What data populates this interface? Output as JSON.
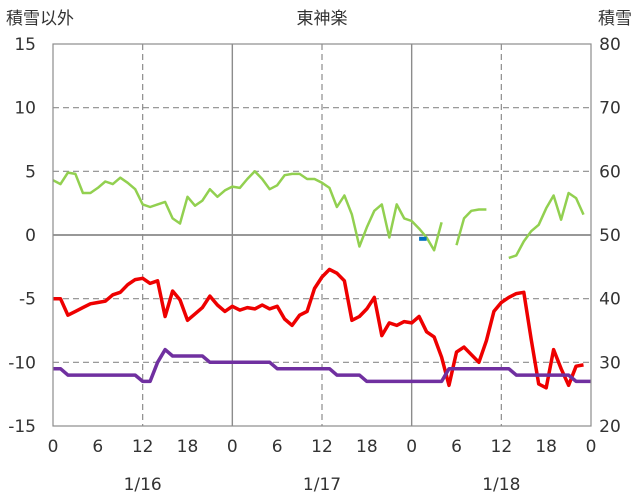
{
  "chart_data": {
    "type": "line",
    "title": "東神楽",
    "left_axis_label": "積雪以外",
    "right_axis_label": "積雪",
    "left_ylim": [
      -15,
      15
    ],
    "right_ylim": [
      20,
      80
    ],
    "left_yticks": [
      "15",
      "10",
      "5",
      "0",
      "-5",
      "-10",
      "-15"
    ],
    "right_yticks": [
      "80",
      "70",
      "60",
      "50",
      "40",
      "30",
      "20"
    ],
    "xlim": [
      0,
      72
    ],
    "x_ticks": [
      {
        "x": 0,
        "label": "0"
      },
      {
        "x": 6,
        "label": "6"
      },
      {
        "x": 12,
        "label": "12"
      },
      {
        "x": 18,
        "label": "18"
      },
      {
        "x": 24,
        "label": "0"
      },
      {
        "x": 30,
        "label": "6"
      },
      {
        "x": 36,
        "label": "12"
      },
      {
        "x": 42,
        "label": "18"
      },
      {
        "x": 48,
        "label": "0"
      },
      {
        "x": 54,
        "label": "6"
      },
      {
        "x": 60,
        "label": "12"
      },
      {
        "x": 66,
        "label": "18"
      },
      {
        "x": 72,
        "label": "0"
      }
    ],
    "date_labels": [
      {
        "x": 12,
        "label": "1/16"
      },
      {
        "x": 36,
        "label": "1/17"
      },
      {
        "x": 60,
        "label": "1/18"
      }
    ],
    "series": [
      {
        "color": "#92d050",
        "axis": "left",
        "width": 2.5,
        "segments": [
          [
            [
              0,
              4.3
            ],
            [
              1,
              4.0
            ],
            [
              2,
              4.9
            ],
            [
              3,
              4.8
            ],
            [
              4,
              3.3
            ],
            [
              5,
              3.3
            ],
            [
              6,
              3.7
            ],
            [
              7,
              4.2
            ],
            [
              8,
              4.0
            ],
            [
              9,
              4.5
            ],
            [
              10,
              4.1
            ],
            [
              11,
              3.6
            ],
            [
              12,
              2.4
            ],
            [
              13,
              2.2
            ],
            [
              14,
              2.4
            ],
            [
              15,
              2.6
            ],
            [
              16,
              1.3
            ],
            [
              17,
              0.9
            ],
            [
              18,
              3.0
            ],
            [
              19,
              2.3
            ],
            [
              20,
              2.7
            ],
            [
              21,
              3.6
            ],
            [
              22,
              3.0
            ],
            [
              23,
              3.5
            ],
            [
              24,
              3.8
            ],
            [
              25,
              3.7
            ],
            [
              26,
              4.4
            ],
            [
              27,
              5.0
            ],
            [
              28,
              4.4
            ],
            [
              29,
              3.6
            ],
            [
              30,
              3.9
            ],
            [
              31,
              4.7
            ],
            [
              32,
              4.8
            ],
            [
              33,
              4.8
            ],
            [
              34,
              4.4
            ],
            [
              35,
              4.4
            ],
            [
              36,
              4.1
            ],
            [
              37,
              3.7
            ],
            [
              38,
              2.2
            ],
            [
              39,
              3.1
            ],
            [
              40,
              1.6
            ],
            [
              41,
              -0.9
            ],
            [
              42,
              0.6
            ],
            [
              43,
              1.9
            ],
            [
              44,
              2.4
            ],
            [
              45,
              -0.2
            ],
            [
              46,
              2.4
            ],
            [
              47,
              1.3
            ],
            [
              48,
              1.1
            ],
            [
              49,
              0.5
            ],
            [
              50,
              -0.2
            ],
            [
              51,
              -1.2
            ],
            [
              52,
              1.0
            ]
          ],
          [
            [
              54,
              -0.8
            ],
            [
              55,
              1.3
            ],
            [
              56,
              1.9
            ],
            [
              57,
              2.0
            ],
            [
              58,
              2.0
            ]
          ],
          [
            [
              61,
              -1.8
            ],
            [
              62,
              -1.6
            ],
            [
              63,
              -0.5
            ],
            [
              64,
              0.3
            ],
            [
              65,
              0.8
            ],
            [
              66,
              2.1
            ],
            [
              67,
              3.1
            ],
            [
              68,
              1.2
            ],
            [
              69,
              3.3
            ],
            [
              70,
              2.9
            ],
            [
              71,
              1.6
            ]
          ]
        ]
      },
      {
        "color": "#ee0000",
        "axis": "left",
        "width": 3.5,
        "segments": [
          [
            [
              0,
              -5.0
            ],
            [
              1,
              -5.0
            ],
            [
              2,
              -6.3
            ],
            [
              3,
              -6.0
            ],
            [
              4,
              -5.7
            ],
            [
              5,
              -5.4
            ],
            [
              6,
              -5.3
            ],
            [
              7,
              -5.2
            ],
            [
              8,
              -4.7
            ],
            [
              9,
              -4.5
            ],
            [
              10,
              -3.9
            ],
            [
              11,
              -3.5
            ],
            [
              12,
              -3.4
            ],
            [
              13,
              -3.8
            ],
            [
              14,
              -3.6
            ],
            [
              15,
              -6.4
            ],
            [
              16,
              -4.4
            ],
            [
              17,
              -5.1
            ],
            [
              18,
              -6.7
            ],
            [
              19,
              -6.2
            ],
            [
              20,
              -5.7
            ],
            [
              21,
              -4.8
            ],
            [
              22,
              -5.5
            ],
            [
              23,
              -6.0
            ],
            [
              24,
              -5.6
            ],
            [
              25,
              -5.9
            ],
            [
              26,
              -5.7
            ],
            [
              27,
              -5.8
            ],
            [
              28,
              -5.5
            ],
            [
              29,
              -5.8
            ],
            [
              30,
              -5.6
            ],
            [
              31,
              -6.6
            ],
            [
              32,
              -7.1
            ],
            [
              33,
              -6.3
            ],
            [
              34,
              -6.0
            ],
            [
              35,
              -4.2
            ],
            [
              36,
              -3.3
            ],
            [
              37,
              -2.7
            ],
            [
              38,
              -3.0
            ],
            [
              39,
              -3.6
            ],
            [
              40,
              -6.7
            ],
            [
              41,
              -6.4
            ],
            [
              42,
              -5.8
            ],
            [
              43,
              -4.9
            ],
            [
              44,
              -7.9
            ],
            [
              45,
              -6.9
            ],
            [
              46,
              -7.1
            ],
            [
              47,
              -6.8
            ],
            [
              48,
              -6.9
            ],
            [
              49,
              -6.4
            ],
            [
              50,
              -7.6
            ],
            [
              51,
              -8.0
            ],
            [
              52,
              -9.6
            ],
            [
              53,
              -11.8
            ],
            [
              54,
              -9.2
            ],
            [
              55,
              -8.8
            ],
            [
              56,
              -9.4
            ],
            [
              57,
              -10.0
            ],
            [
              58,
              -8.3
            ],
            [
              59,
              -6.0
            ],
            [
              60,
              -5.3
            ],
            [
              61,
              -4.9
            ],
            [
              62,
              -4.6
            ],
            [
              63,
              -4.5
            ],
            [
              64,
              -8.2
            ],
            [
              65,
              -11.7
            ],
            [
              66,
              -12.0
            ],
            [
              67,
              -9.0
            ],
            [
              68,
              -10.5
            ],
            [
              69,
              -11.8
            ],
            [
              70,
              -10.3
            ],
            [
              71,
              -10.2
            ]
          ]
        ]
      },
      {
        "color": "#7030a0",
        "axis": "left",
        "width": 3.5,
        "segments": [
          [
            [
              0,
              -10.5
            ],
            [
              1,
              -10.5
            ],
            [
              2,
              -11.0
            ],
            [
              3,
              -11.0
            ],
            [
              11,
              -11.0
            ],
            [
              12,
              -11.5
            ],
            [
              13,
              -11.5
            ],
            [
              14,
              -10.0
            ],
            [
              15,
              -9.0
            ],
            [
              16,
              -9.5
            ],
            [
              20,
              -9.5
            ],
            [
              21,
              -10.0
            ],
            [
              29,
              -10.0
            ],
            [
              30,
              -10.5
            ],
            [
              37,
              -10.5
            ],
            [
              38,
              -11.0
            ],
            [
              41,
              -11.0
            ],
            [
              42,
              -11.5
            ],
            [
              52,
              -11.5
            ],
            [
              53,
              -10.5
            ],
            [
              61,
              -10.5
            ],
            [
              62,
              -11.0
            ],
            [
              69,
              -11.0
            ],
            [
              70,
              -11.5
            ],
            [
              72,
              -11.5
            ]
          ]
        ]
      },
      {
        "color": "#0070c0",
        "axis": "right",
        "width": 4,
        "segments": [
          [
            [
              49,
              49.4
            ],
            [
              50,
              49.4
            ]
          ]
        ]
      }
    ],
    "grid": {
      "horizontal_dashed_at": [
        10,
        5,
        -5,
        -10
      ],
      "horizontal_solid_at": [
        0
      ],
      "vertical_dashed_at": [
        12,
        36,
        60
      ],
      "vertical_solid_at": [
        24,
        48
      ]
    }
  }
}
